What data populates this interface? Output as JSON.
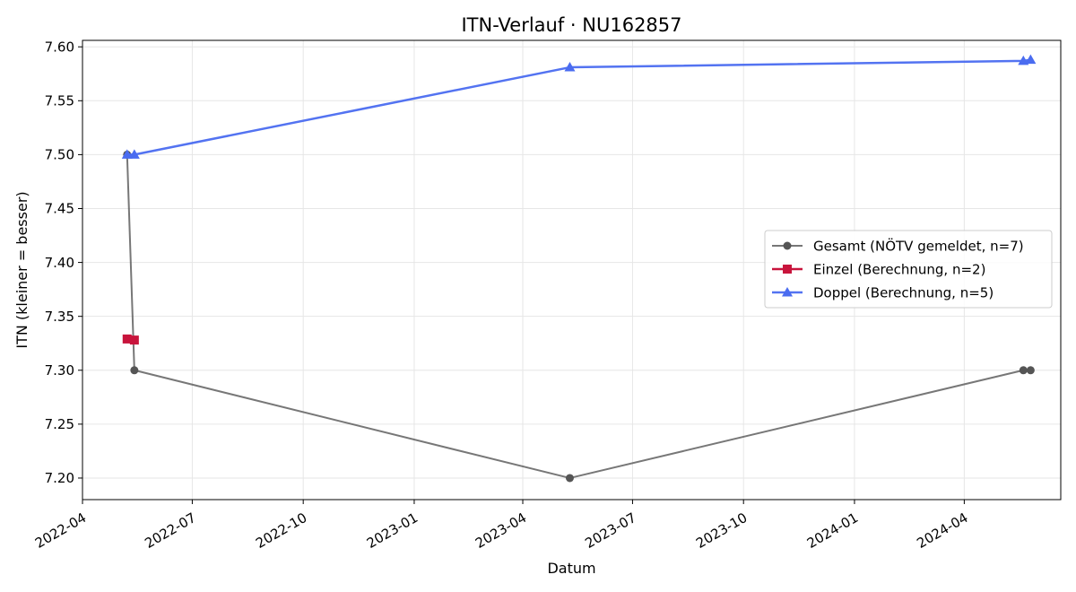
{
  "chart_data": {
    "type": "line",
    "title": "ITN-Verlauf · NU162857",
    "xlabel": "Datum",
    "ylabel": "ITN  (kleiner = besser)",
    "x_type": "date",
    "xlim": [
      "2022-04-01",
      "2024-06-20"
    ],
    "ylim": [
      7.18,
      7.606
    ],
    "xticks": [
      "2022-04",
      "2022-07",
      "2022-10",
      "2023-01",
      "2023-04",
      "2023-07",
      "2023-10",
      "2024-01",
      "2024-04"
    ],
    "yticks": [
      "7.20",
      "7.25",
      "7.30",
      "7.35",
      "7.40",
      "7.45",
      "7.50",
      "7.55",
      "7.60"
    ],
    "grid": true,
    "legend_position": "center-right",
    "series": [
      {
        "name": "Gesamt (NÖTV gemeldet, n=7)",
        "color": "#555555",
        "marker": "circle",
        "points": [
          {
            "x": "2022-05-08",
            "y": 7.5
          },
          {
            "x": "2022-05-14",
            "y": 7.3
          },
          {
            "x": "2023-05-10",
            "y": 7.2
          },
          {
            "x": "2024-05-20",
            "y": 7.3
          },
          {
            "x": "2024-05-26",
            "y": 7.3
          }
        ]
      },
      {
        "name": "Einzel (Berechnung, n=2)",
        "color": "#c8143c",
        "marker": "square",
        "points": [
          {
            "x": "2022-05-08",
            "y": 7.329
          },
          {
            "x": "2022-05-14",
            "y": 7.328
          }
        ]
      },
      {
        "name": "Doppel (Berechnung, n=5)",
        "color": "#4a6cf0",
        "marker": "triangle",
        "points": [
          {
            "x": "2022-05-08",
            "y": 7.5
          },
          {
            "x": "2022-05-14",
            "y": 7.5
          },
          {
            "x": "2023-05-10",
            "y": 7.581
          },
          {
            "x": "2024-05-20",
            "y": 7.587
          },
          {
            "x": "2024-05-26",
            "y": 7.588
          }
        ]
      }
    ]
  }
}
